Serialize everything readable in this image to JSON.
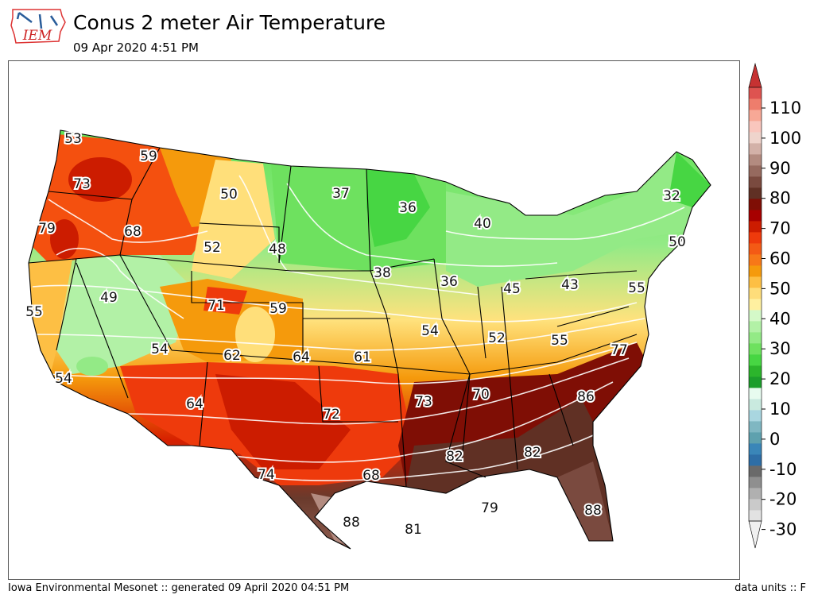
{
  "header": {
    "logo_text": "IEM",
    "title": "Conus 2 meter Air Temperature",
    "subtitle": "09 Apr 2020 4:51 PM"
  },
  "footer": {
    "left": "Iowa Environmental Mesonet :: generated 09 April 2020 04:51 PM",
    "right": "data units :: F"
  },
  "map_values": [
    {
      "v": "53"
    },
    {
      "v": "59"
    },
    {
      "v": "73"
    },
    {
      "v": "50"
    },
    {
      "v": "37"
    },
    {
      "v": "36"
    },
    {
      "v": "32"
    },
    {
      "v": "79"
    },
    {
      "v": "68"
    },
    {
      "v": "52"
    },
    {
      "v": "48"
    },
    {
      "v": "40"
    },
    {
      "v": "50"
    },
    {
      "v": "38"
    },
    {
      "v": "36"
    },
    {
      "v": "45"
    },
    {
      "v": "43"
    },
    {
      "v": "55"
    },
    {
      "v": "55"
    },
    {
      "v": "49"
    },
    {
      "v": "71"
    },
    {
      "v": "59"
    },
    {
      "v": "54"
    },
    {
      "v": "52"
    },
    {
      "v": "55"
    },
    {
      "v": "54"
    },
    {
      "v": "62"
    },
    {
      "v": "64"
    },
    {
      "v": "61"
    },
    {
      "v": "77"
    },
    {
      "v": "54"
    },
    {
      "v": "64"
    },
    {
      "v": "73"
    },
    {
      "v": "70"
    },
    {
      "v": "86"
    },
    {
      "v": "72"
    },
    {
      "v": "82"
    },
    {
      "v": "82"
    },
    {
      "v": "74"
    },
    {
      "v": "68"
    },
    {
      "v": "79"
    },
    {
      "v": "88"
    },
    {
      "v": "88"
    },
    {
      "v": "81"
    }
  ],
  "colorbar": {
    "labels": [
      "110",
      "100",
      "90",
      "80",
      "70",
      "60",
      "50",
      "40",
      "30",
      "20",
      "10",
      "0",
      "-10",
      "-20",
      "-30"
    ],
    "colors": [
      "#e2e2e2",
      "#cacaca",
      "#b0b0b0",
      "#8f8f8f",
      "#6a6a6a",
      "#2e6ea6",
      "#3a86b8",
      "#5ea1ae",
      "#7fb7c2",
      "#a9d6e0",
      "#c9eadf",
      "#e7fbef",
      "#1c9e2c",
      "#2cb52c",
      "#47d643",
      "#6ee15f",
      "#93ea86",
      "#b2f1a6",
      "#d4f9c8",
      "#fff0a0",
      "#fedd7a",
      "#fdbf44",
      "#f59a0c",
      "#f77818",
      "#f45a15",
      "#ee3a0c",
      "#cc1c00",
      "#a70000",
      "#7f0e05",
      "#603024",
      "#7a4a3f",
      "#966a5f",
      "#b38b80",
      "#d3b1a8",
      "#efd4cc",
      "#f9c6bd",
      "#f7a896",
      "#ee7d6c",
      "#de5350"
    ],
    "top_color": "#c63232",
    "bottom_color": "#f0f0f0"
  }
}
